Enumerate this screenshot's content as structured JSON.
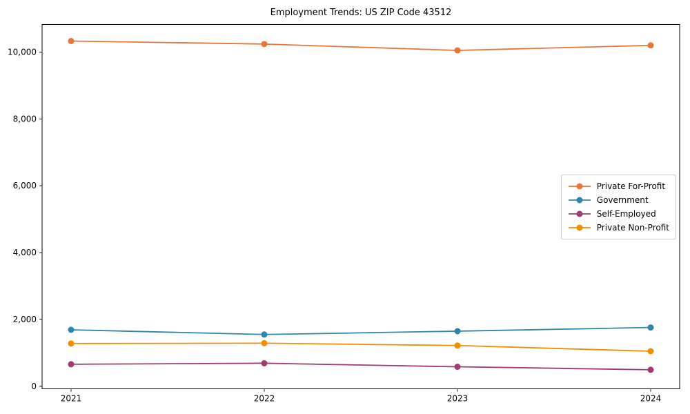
{
  "chart_data": {
    "type": "line",
    "title": "Employment Trends: US ZIP Code 43512",
    "categories": [
      "2021",
      "2022",
      "2023",
      "2024"
    ],
    "series": [
      {
        "name": "Private For-Profit",
        "color": "#E8763A",
        "values": [
          10330,
          10240,
          10050,
          10200
        ]
      },
      {
        "name": "Government",
        "color": "#2E86AB",
        "values": [
          1690,
          1550,
          1650,
          1760
        ]
      },
      {
        "name": "Self-Employed",
        "color": "#A23B72",
        "values": [
          660,
          690,
          585,
          495
        ]
      },
      {
        "name": "Private Non-Profit",
        "color": "#F18F01",
        "values": [
          1280,
          1290,
          1220,
          1050
        ]
      }
    ],
    "xlabel": "",
    "ylabel": "",
    "xtick_labels": [
      "2021",
      "2022",
      "2023",
      "2024"
    ],
    "yticks": [
      0,
      2000,
      4000,
      6000,
      8000,
      10000
    ],
    "ytick_labels": [
      "0",
      "2,000",
      "4,000",
      "6,000",
      "8,000",
      "10,000"
    ],
    "ylim": [
      -75,
      10825
    ],
    "grid": false,
    "legend_position": "center right",
    "marker": "circle",
    "axis_color": "#000000",
    "background_color": "#ffffff"
  }
}
